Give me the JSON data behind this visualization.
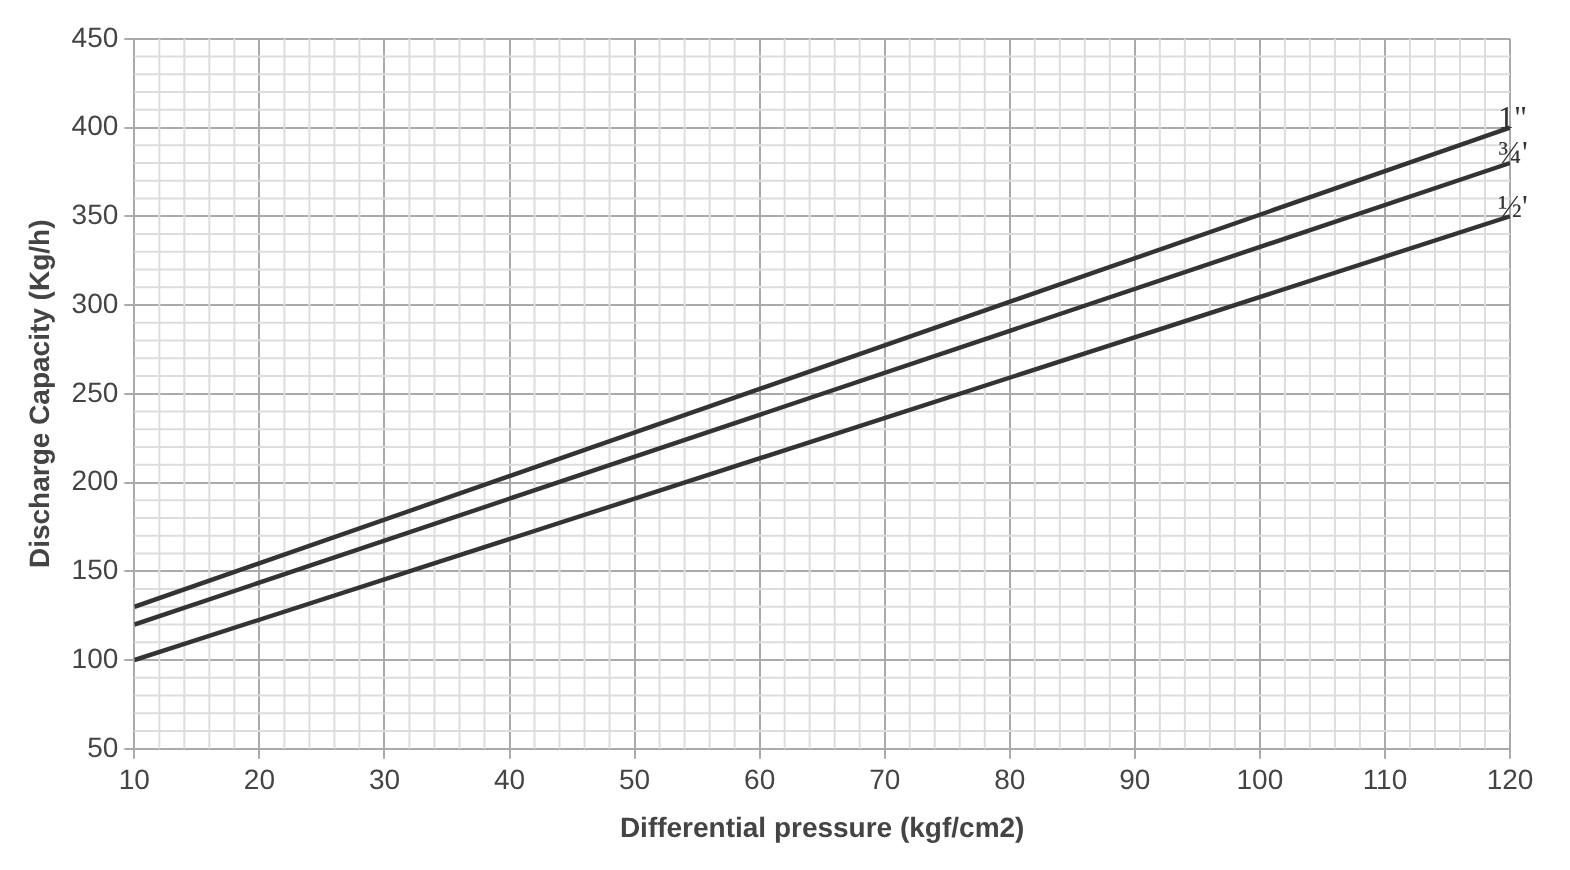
{
  "chart_data": {
    "type": "line",
    "xlabel": "Differential pressure (kgf/cm2)",
    "ylabel": "Discharge Capacity (Kg/h)",
    "x": [
      10,
      120
    ],
    "xlim": [
      10,
      120
    ],
    "xticks": [
      10,
      20,
      30,
      40,
      50,
      60,
      70,
      80,
      90,
      100,
      110,
      120
    ],
    "ylim": [
      50,
      450
    ],
    "yticks": [
      50,
      100,
      150,
      200,
      250,
      300,
      350,
      400,
      450
    ],
    "grid": true,
    "legend": false,
    "marker": "none",
    "line_style": "solid",
    "series": [
      {
        "name": "1\"",
        "color": "#333333",
        "values": [
          130,
          400
        ]
      },
      {
        "name": "¾'",
        "color": "#333333",
        "values": [
          120,
          380
        ]
      },
      {
        "name": "½'",
        "color": "#333333",
        "values": [
          100,
          350
        ]
      }
    ]
  }
}
